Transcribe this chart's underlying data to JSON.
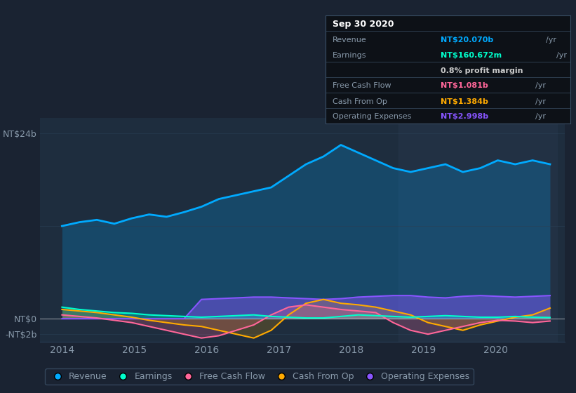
{
  "bg_color": "#1a2332",
  "plot_bg_color": "#1e2d3e",
  "highlight_bg_color": "#243447",
  "grid_color": "#2a3f55",
  "text_color": "#8899aa",
  "title_color": "#ffffff",
  "xlim_start": 2013.7,
  "xlim_end": 2020.95,
  "xticks": [
    2014,
    2015,
    2016,
    2017,
    2018,
    2019,
    2020
  ],
  "revenue_color": "#00aaff",
  "earnings_color": "#00ffcc",
  "fcf_color": "#ff6699",
  "cashfromop_color": "#ffaa00",
  "opex_color": "#8855ff",
  "legend_bg": "#1a2332",
  "legend_border": "#3a4f66",
  "info_box_bg": "#0d1117",
  "info_box_border": "#3a4f66",
  "info_date": "Sep 30 2020",
  "info_revenue_label": "Revenue",
  "info_revenue_val": "NT$20.070b",
  "info_earnings_label": "Earnings",
  "info_earnings_val": "NT$160.672m",
  "info_margin": "0.8% profit margin",
  "info_fcf_label": "Free Cash Flow",
  "info_fcf_val": "NT$1.081b",
  "info_cashop_label": "Cash From Op",
  "info_cashop_val": "NT$1.384b",
  "info_opex_label": "Operating Expenses",
  "info_opex_val": "NT$2.998b",
  "legend_labels": [
    "Revenue",
    "Earnings",
    "Free Cash Flow",
    "Cash From Op",
    "Operating Expenses"
  ]
}
